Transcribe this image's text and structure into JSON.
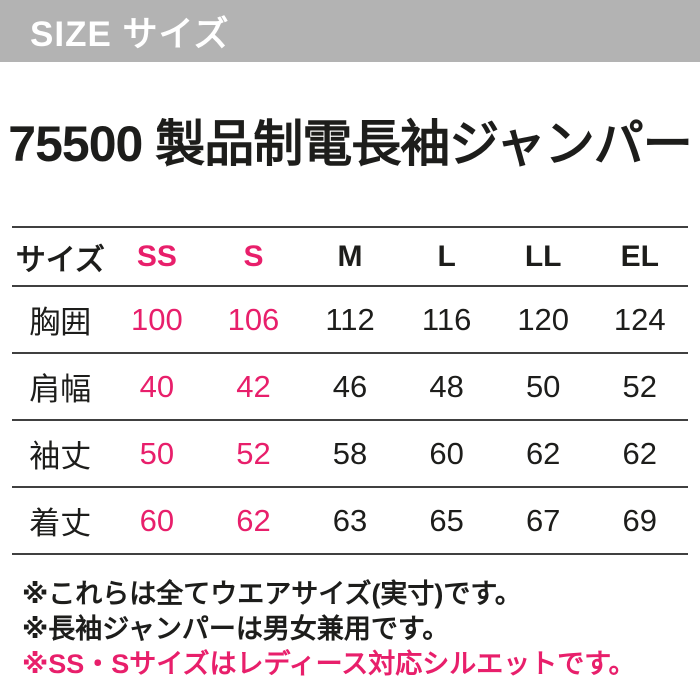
{
  "header_bar": {
    "label": "SIZE サイズ"
  },
  "page_title": "75500 製品制電長袖ジャンパー",
  "size_table": {
    "columns": [
      "サイズ",
      "SS",
      "S",
      "M",
      "L",
      "LL",
      "EL"
    ],
    "highlight_columns": [
      "SS",
      "S"
    ],
    "rows": [
      {
        "label": "胸囲",
        "values": [
          "100",
          "106",
          "112",
          "116",
          "120",
          "124"
        ]
      },
      {
        "label": "肩幅",
        "values": [
          "40",
          "42",
          "46",
          "48",
          "50",
          "52"
        ]
      },
      {
        "label": "袖丈",
        "values": [
          "50",
          "52",
          "58",
          "60",
          "62",
          "62"
        ]
      },
      {
        "label": "着丈",
        "values": [
          "60",
          "62",
          "63",
          "65",
          "67",
          "69"
        ]
      }
    ]
  },
  "notes": [
    {
      "text": "※これらは全てウエアサイズ(実寸)です。",
      "highlight": false
    },
    {
      "text": "※長袖ジャンパーは男女兼用です。",
      "highlight": false
    },
    {
      "text": "※SS・Sサイズはレディース対応シルエットです。",
      "highlight": true
    }
  ],
  "colors": {
    "accent_pink": "#e81f6b",
    "header_gray": "#b3b3b3",
    "text_black": "#1d1d1b",
    "rule_gray": "#404040"
  }
}
